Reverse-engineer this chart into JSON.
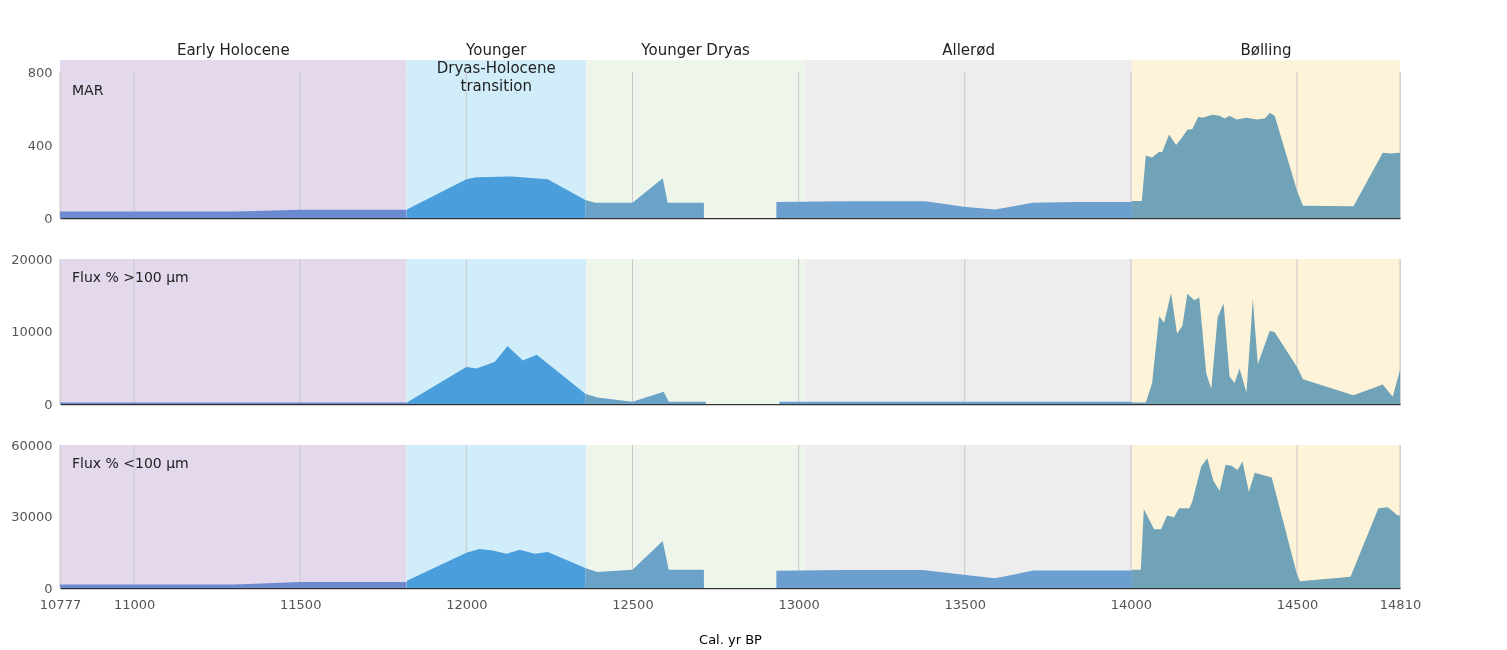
{
  "chart_data": [
    {
      "type": "area",
      "title": "MAR",
      "xlim": [
        10777,
        14810
      ],
      "xticks": [
        10777,
        11000,
        11500,
        12000,
        12500,
        13000,
        13500,
        14000,
        14500,
        14810
      ],
      "ylim": [
        0,
        800
      ],
      "yticks": [
        0,
        400,
        800
      ],
      "grid": "x",
      "tick_labels": "y",
      "bands": [
        {
          "axis": "x",
          "from": 10777,
          "to": 11820,
          "label": "Early Holocene",
          "color": "#e3d8ec"
        },
        {
          "axis": "x",
          "from": 11820,
          "to": 12360,
          "label": "Younger Dryas-Holocene transition",
          "color": "#d1edf9"
        },
        {
          "axis": "x",
          "from": 12360,
          "to": 13020,
          "label": "Younger Dryas",
          "color": "#eef5ea"
        },
        {
          "axis": "x",
          "from": 13020,
          "to": 14003,
          "label": "Allerød",
          "color": "#ededed"
        },
        {
          "axis": "x",
          "from": 14003,
          "to": 14810,
          "label": "Bølling",
          "color": "#fdf3d8"
        }
      ],
      "series": [
        {
          "color": "#6c8ad0",
          "x": [
            10777,
            11300,
            11500,
            11820
          ],
          "values": [
            35,
            35,
            45,
            45
          ]
        },
        {
          "color": "#4a9edb",
          "x": [
            11821,
            12000,
            12030,
            12136,
            12245,
            12358
          ],
          "values": [
            47,
            213,
            223,
            228,
            213,
            99
          ]
        },
        {
          "color": "#6ba3c8",
          "x": [
            12358,
            12388,
            12500,
            12591,
            12606,
            12715
          ],
          "values": [
            99,
            83,
            83,
            218,
            83,
            83
          ]
        },
        {
          "color": "#6a9fd0",
          "x": [
            12933,
            13142,
            13382,
            13497,
            13591,
            13706,
            13833,
            14003
          ],
          "values": [
            88,
            92,
            92,
            62,
            47,
            83,
            88,
            88
          ]
        },
        {
          "color": "#71a3b8",
          "x": [
            14003,
            14033,
            14045,
            14064,
            14085,
            14094,
            14115,
            14136,
            14152,
            14170,
            14185,
            14203,
            14215,
            14245,
            14267,
            14282,
            14297,
            14318,
            14348,
            14379,
            14403,
            14418,
            14433,
            14500,
            14518,
            14670,
            14758,
            14782,
            14810
          ],
          "values": [
            93,
            93,
            343,
            332,
            363,
            360,
            457,
            400,
            436,
            483,
            488,
            555,
            550,
            566,
            560,
            545,
            560,
            540,
            550,
            540,
            545,
            576,
            560,
            150,
            67,
            64,
            358,
            353,
            358
          ]
        }
      ]
    },
    {
      "type": "area",
      "title": "Flux % >100 µm",
      "xlim": [
        10777,
        14810
      ],
      "xticks": [
        10777,
        11000,
        11500,
        12000,
        12500,
        13000,
        13500,
        14000,
        14500,
        14810
      ],
      "ylim": [
        0,
        20000
      ],
      "yticks": [
        0,
        10000,
        20000
      ],
      "grid": "x",
      "tick_labels": "y",
      "bands": [
        {
          "axis": "x",
          "from": 10777,
          "to": 11820,
          "color": "#e3d8ec"
        },
        {
          "axis": "x",
          "from": 11820,
          "to": 12360,
          "color": "#d1edf9"
        },
        {
          "axis": "x",
          "from": 12360,
          "to": 13020,
          "color": "#eef5ea"
        },
        {
          "axis": "x",
          "from": 13020,
          "to": 14003,
          "color": "#ededed"
        },
        {
          "axis": "x",
          "from": 14003,
          "to": 14810,
          "color": "#fdf3d8"
        }
      ],
      "series": [
        {
          "color": "#6c8ad0",
          "x": [
            10777,
            11820
          ],
          "values": [
            200,
            200
          ]
        },
        {
          "color": "#4a9edb",
          "x": [
            11821,
            12000,
            12030,
            12085,
            12124,
            12170,
            12212,
            12358
          ],
          "values": [
            200,
            5100,
            4900,
            5800,
            8000,
            6000,
            6800,
            1400
          ]
        },
        {
          "color": "#6ba3c8",
          "x": [
            12358,
            12394,
            12500,
            12594,
            12609,
            12721
          ],
          "values": [
            1400,
            900,
            300,
            1700,
            300,
            300
          ]
        },
        {
          "color": "#6a9fd0",
          "x": [
            12942,
            14003
          ],
          "values": [
            300,
            300
          ]
        },
        {
          "color": "#71a3b8",
          "x": [
            14003,
            14045,
            14064,
            14085,
            14100,
            14121,
            14139,
            14155,
            14170,
            14191,
            14206,
            14227,
            14242,
            14261,
            14279,
            14297,
            14312,
            14327,
            14348,
            14367,
            14382,
            14418,
            14433,
            14500,
            14518,
            14670,
            14758,
            14788,
            14810
          ],
          "values": [
            200,
            200,
            2900,
            12100,
            11200,
            15300,
            9700,
            10800,
            15200,
            14300,
            14700,
            4200,
            2100,
            11900,
            13900,
            3800,
            2900,
            4900,
            1600,
            14500,
            5500,
            10100,
            9900,
            5100,
            3400,
            1200,
            2700,
            1000,
            4700
          ]
        }
      ]
    },
    {
      "type": "area",
      "title": "Flux % <100 µm",
      "xlabel": "Cal. yr BP",
      "xlim": [
        10777,
        14810
      ],
      "xticks": [
        10777,
        11000,
        11500,
        12000,
        12500,
        13000,
        13500,
        14000,
        14500,
        14810
      ],
      "ylim": [
        0,
        60000
      ],
      "yticks": [
        0,
        30000,
        60000
      ],
      "grid": "x",
      "bands": [
        {
          "axis": "x",
          "from": 10777,
          "to": 11820,
          "color": "#e3d8ec"
        },
        {
          "axis": "x",
          "from": 11820,
          "to": 12360,
          "color": "#d1edf9"
        },
        {
          "axis": "x",
          "from": 12360,
          "to": 13020,
          "color": "#eef5ea"
        },
        {
          "axis": "x",
          "from": 13020,
          "to": 14003,
          "color": "#ededed"
        },
        {
          "axis": "x",
          "from": 14003,
          "to": 14810,
          "color": "#fdf3d8"
        }
      ],
      "series": [
        {
          "color": "#6c8ad0",
          "x": [
            10777,
            11300,
            11500,
            11820
          ],
          "values": [
            1500,
            1500,
            2500,
            2500
          ]
        },
        {
          "color": "#4a9edb",
          "x": [
            11821,
            12000,
            12039,
            12079,
            12121,
            12161,
            12206,
            12245,
            12358
          ],
          "values": [
            3000,
            14800,
            16400,
            15700,
            14400,
            16100,
            14400,
            15100,
            8400
          ]
        },
        {
          "color": "#6ba3c8",
          "x": [
            12358,
            12394,
            12500,
            12591,
            12609,
            12715
          ],
          "values": [
            8400,
            6700,
            7700,
            19700,
            7700,
            7700
          ]
        },
        {
          "color": "#6a9fd0",
          "x": [
            12933,
            13142,
            13373,
            13497,
            13591,
            13706,
            14003
          ],
          "values": [
            7200,
            7600,
            7600,
            5600,
            4100,
            7300,
            7300
          ]
        },
        {
          "color": "#71a3b8",
          "x": [
            14003,
            14030,
            14039,
            14070,
            14091,
            14109,
            14130,
            14145,
            14176,
            14185,
            14212,
            14230,
            14248,
            14267,
            14285,
            14303,
            14321,
            14336,
            14355,
            14373,
            14424,
            14500,
            14509,
            14661,
            14745,
            14773,
            14803,
            14810
          ],
          "values": [
            7700,
            7700,
            33100,
            24700,
            24700,
            30400,
            29700,
            33500,
            33500,
            36400,
            51100,
            54400,
            45100,
            40700,
            51700,
            51300,
            49500,
            53100,
            40400,
            48400,
            46400,
            5700,
            2800,
            4700,
            33500,
            33900,
            30400,
            30400
          ]
        }
      ]
    }
  ]
}
